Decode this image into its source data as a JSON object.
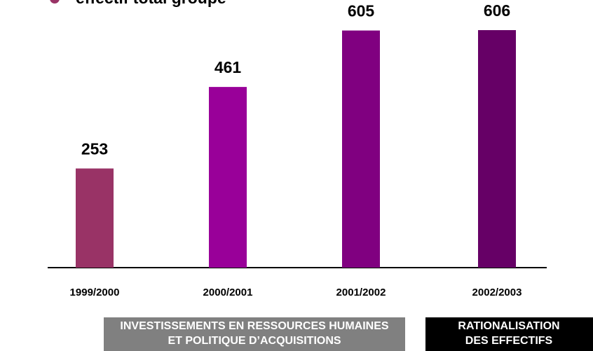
{
  "chart_data": {
    "type": "bar",
    "title": "effectif total groupe",
    "categories": [
      "1999/2000",
      "2000/2001",
      "2001/2002",
      "2002/2003"
    ],
    "values": [
      253,
      461,
      605,
      606
    ],
    "colors": [
      "#993366",
      "#990099",
      "#800080",
      "#660066"
    ]
  },
  "footer": {
    "left": [
      "INVESTISSEMENTS EN RESSOURCES HUMAINES",
      "ET POLITIQUE D’ACQUISITIONS"
    ],
    "right": [
      "RATIONALISATION",
      "DES EFFECTIFS"
    ]
  }
}
